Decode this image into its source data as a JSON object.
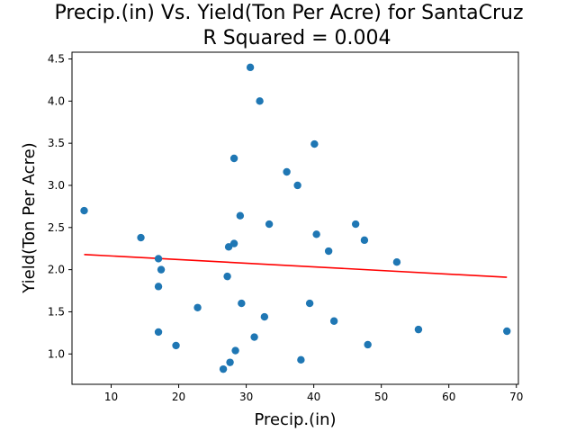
{
  "chart_data": {
    "type": "scatter",
    "title": "Precip.(in) Vs. Yield(Ton Per Acre) for SantaCruz",
    "subtitle": "R Squared =  0.004",
    "xlabel": "Precip.(in)",
    "ylabel": "Yield(Ton Per Acre)",
    "xlim": [
      4.2,
      70.3
    ],
    "ylim": [
      0.64,
      4.58
    ],
    "xticks": [
      10,
      20,
      30,
      40,
      50,
      60,
      70
    ],
    "yticks": [
      1.0,
      1.5,
      2.0,
      2.5,
      3.0,
      3.5,
      4.0,
      4.5
    ],
    "grid": false,
    "colors": {
      "points": "#1f77b4",
      "fit": "#ff0000"
    },
    "points": [
      {
        "x": 6.0,
        "y": 2.7
      },
      {
        "x": 14.4,
        "y": 2.38
      },
      {
        "x": 17.0,
        "y": 2.13
      },
      {
        "x": 17.4,
        "y": 2.0
      },
      {
        "x": 17.0,
        "y": 1.8
      },
      {
        "x": 17.0,
        "y": 1.26
      },
      {
        "x": 19.6,
        "y": 1.1
      },
      {
        "x": 22.8,
        "y": 1.55
      },
      {
        "x": 26.6,
        "y": 0.82
      },
      {
        "x": 27.6,
        "y": 0.9
      },
      {
        "x": 28.4,
        "y": 1.04
      },
      {
        "x": 27.2,
        "y": 1.92
      },
      {
        "x": 27.4,
        "y": 2.27
      },
      {
        "x": 28.2,
        "y": 2.31
      },
      {
        "x": 28.2,
        "y": 3.32
      },
      {
        "x": 29.1,
        "y": 2.64
      },
      {
        "x": 29.3,
        "y": 1.6
      },
      {
        "x": 30.6,
        "y": 4.4
      },
      {
        "x": 31.2,
        "y": 1.2
      },
      {
        "x": 32.0,
        "y": 4.0
      },
      {
        "x": 32.7,
        "y": 1.44
      },
      {
        "x": 33.4,
        "y": 2.54
      },
      {
        "x": 36.0,
        "y": 3.16
      },
      {
        "x": 37.6,
        "y": 3.0
      },
      {
        "x": 38.1,
        "y": 0.93
      },
      {
        "x": 39.4,
        "y": 1.6
      },
      {
        "x": 40.1,
        "y": 3.49
      },
      {
        "x": 40.4,
        "y": 2.42
      },
      {
        "x": 42.2,
        "y": 2.22
      },
      {
        "x": 43.0,
        "y": 1.39
      },
      {
        "x": 46.2,
        "y": 2.54
      },
      {
        "x": 47.5,
        "y": 2.35
      },
      {
        "x": 48.0,
        "y": 1.11
      },
      {
        "x": 52.3,
        "y": 2.09
      },
      {
        "x": 55.5,
        "y": 1.29
      },
      {
        "x": 68.6,
        "y": 1.27
      }
    ],
    "fit_line": {
      "x": [
        6.0,
        68.6
      ],
      "y": [
        2.18,
        1.91
      ]
    }
  }
}
